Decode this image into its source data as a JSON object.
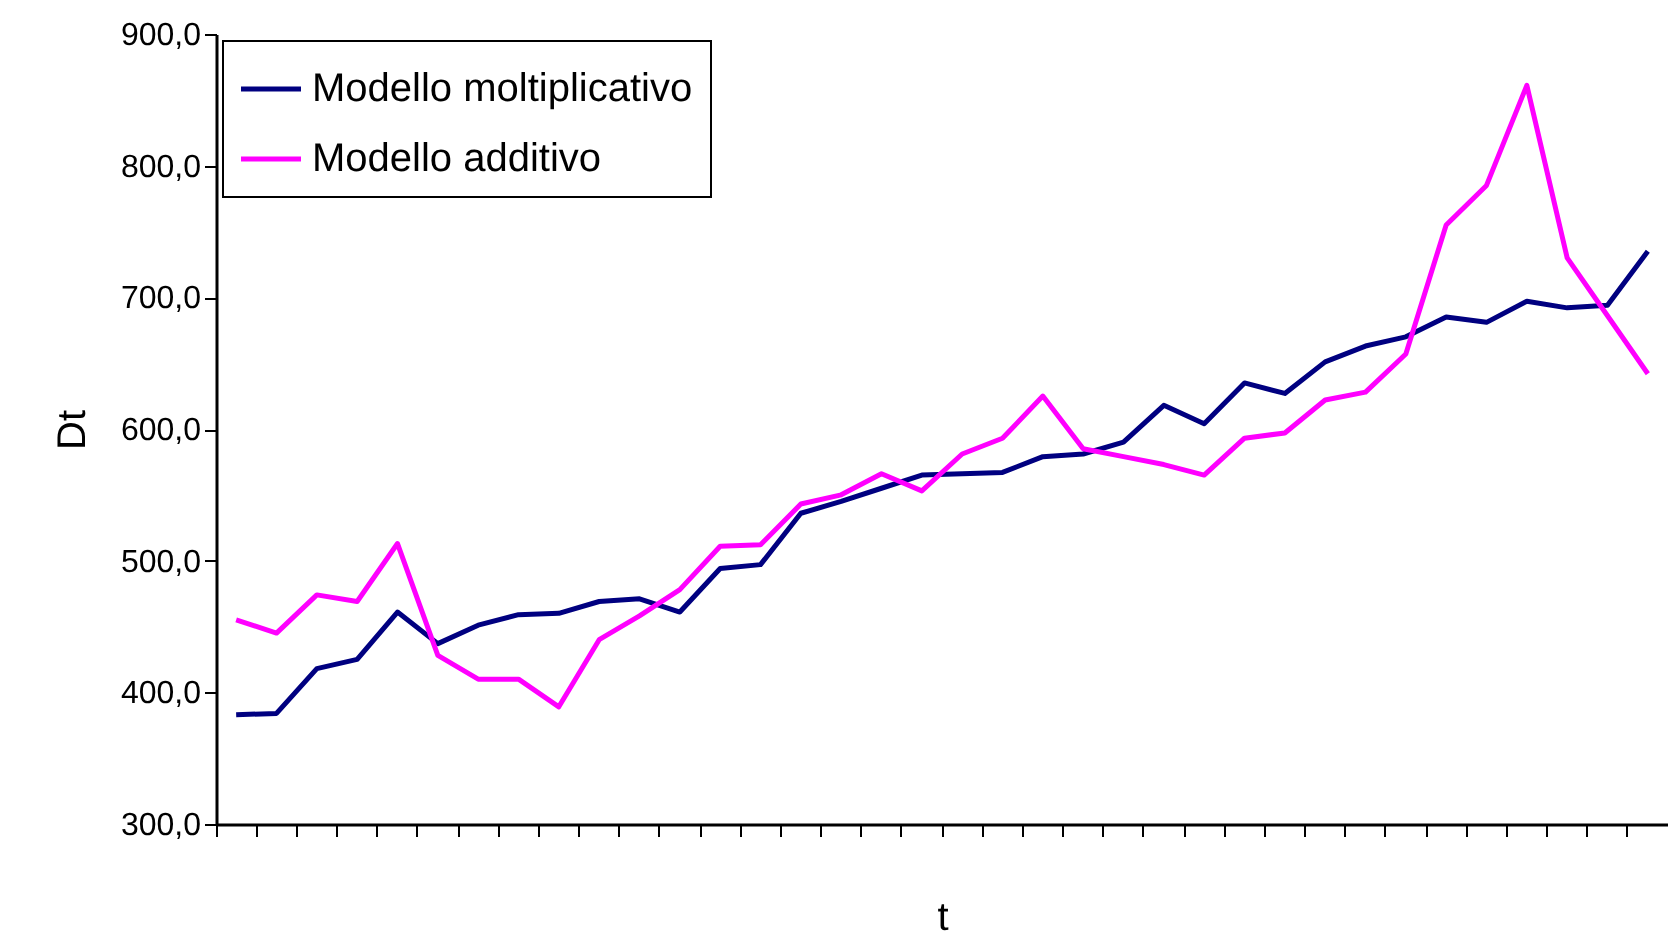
{
  "chart_data": {
    "type": "line",
    "xlabel": "t",
    "ylabel": "Dt",
    "categories": [
      null,
      null,
      null,
      null,
      null,
      null,
      null,
      null,
      null,
      null,
      null,
      null,
      null,
      null,
      null,
      null,
      null,
      null,
      null,
      null,
      null,
      null,
      null,
      null,
      null,
      null,
      null,
      null,
      null,
      null,
      null,
      null,
      null,
      null,
      null,
      null
    ],
    "series": [
      {
        "name": "Modello moltiplicativo",
        "color": "#000080",
        "values": [
          383,
          384,
          418,
          425,
          461,
          437,
          451,
          459,
          460,
          469,
          471,
          461,
          494,
          497,
          536,
          545,
          555,
          565,
          566,
          567,
          579,
          581,
          590,
          618,
          604,
          635,
          627,
          651,
          663,
          670,
          685,
          681,
          697,
          692,
          694,
          735
        ]
      },
      {
        "name": "Modello additivo",
        "color": "#ff00ff",
        "values": [
          455,
          445,
          474,
          469,
          513,
          428,
          410,
          410,
          389,
          440,
          458,
          478,
          511,
          512,
          543,
          550,
          566,
          553,
          581,
          593,
          625,
          585,
          579,
          573,
          565,
          593,
          597,
          622,
          628,
          657,
          755,
          785,
          861,
          730,
          686,
          642
        ]
      }
    ],
    "ylim": [
      300,
      900
    ],
    "yticks": [
      {
        "value": 300,
        "label": "300,0"
      },
      {
        "value": 400,
        "label": "400,0"
      },
      {
        "value": 500,
        "label": "500,0"
      },
      {
        "value": 600,
        "label": "600,0"
      },
      {
        "value": 700,
        "label": "700,0"
      },
      {
        "value": 800,
        "label": "800,0"
      },
      {
        "value": 900,
        "label": "900,0"
      }
    ],
    "grid": false,
    "legend": "top left",
    "tick_labels": "y",
    "marker": "none",
    "line_style": "solid"
  }
}
